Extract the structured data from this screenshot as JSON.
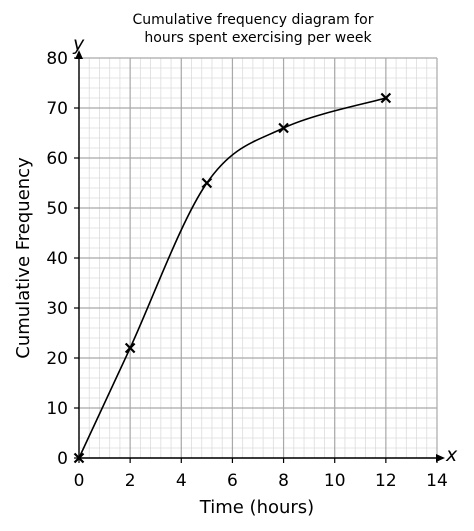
{
  "chart_data": {
    "type": "line",
    "title": "Cumulative frequency diagram for\nhours spent exercising per week",
    "title_lines": [
      "Cumulative frequency diagram for",
      "hours spent exercising per week"
    ],
    "xlabel": "Time (hours)",
    "ylabel": "Cumulative Frequency",
    "x_axis_letter": "x",
    "y_axis_letter": "y",
    "xlim": [
      0,
      14
    ],
    "ylim": [
      0,
      80
    ],
    "x_ticks": [
      0,
      2,
      4,
      6,
      8,
      10,
      12,
      14
    ],
    "y_ticks": [
      0,
      10,
      20,
      30,
      40,
      50,
      60,
      70,
      80
    ],
    "grid": true,
    "x_major_step": 2,
    "y_major_step": 10,
    "x_minor_step": 0.4,
    "y_minor_step": 2,
    "marker": "cross",
    "series": [
      {
        "x": [
          0,
          2,
          5,
          8,
          12
        ],
        "y": [
          0,
          22,
          55,
          66,
          72
        ]
      }
    ],
    "colors": {
      "line": "#000000",
      "major_grid": "#a9a9a9",
      "minor_grid": "#dcdcdc",
      "axis": "#000000"
    }
  }
}
